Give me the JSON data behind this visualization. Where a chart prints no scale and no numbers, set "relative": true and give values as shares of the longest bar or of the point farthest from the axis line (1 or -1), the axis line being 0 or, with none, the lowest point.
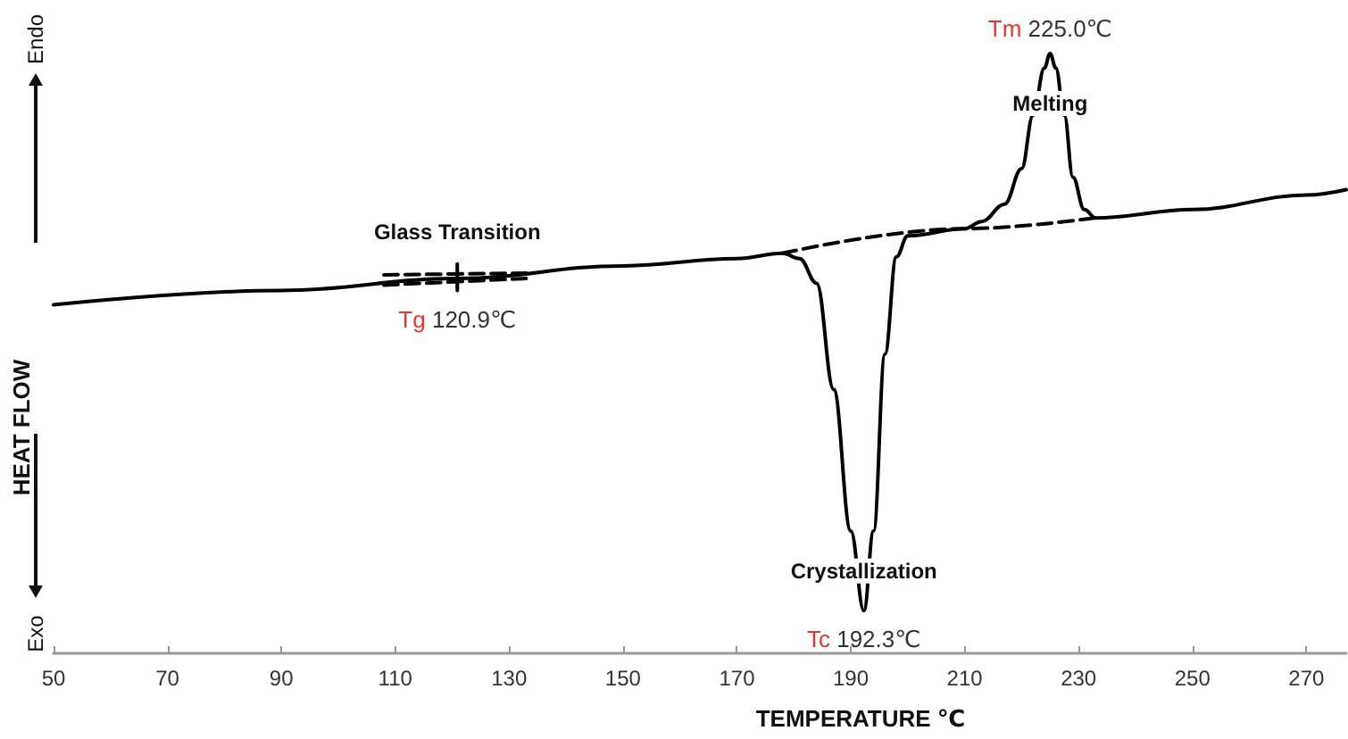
{
  "chart_data": {
    "type": "line",
    "relative": true,
    "xlabel": "TEMPERATURE ℃",
    "ylabel": "HEAT FLOW",
    "marker": "none",
    "grid": false,
    "xlim": [
      50,
      277
    ],
    "xticks": [
      50,
      70,
      90,
      110,
      130,
      150,
      170,
      190,
      210,
      230,
      250,
      270
    ],
    "series": [
      {
        "color": "#000000",
        "line_style": "solid",
        "x": [
          50,
          90,
          120.9,
          150,
          170,
          178,
          181,
          184,
          187,
          190,
          192.3,
          194,
          196,
          198,
          200,
          210,
          213,
          217,
          220,
          222,
          224,
          225,
          226,
          227.5,
          229,
          231,
          233,
          250,
          270,
          277
        ],
        "values": [
          0.581,
          0.605,
          0.625,
          0.646,
          0.658,
          0.667,
          0.658,
          0.617,
          0.44,
          0.204,
          0.071,
          0.204,
          0.499,
          0.661,
          0.696,
          0.708,
          0.72,
          0.749,
          0.808,
          0.897,
          0.976,
          1,
          0.976,
          0.897,
          0.794,
          0.74,
          0.726,
          0.74,
          0.764,
          0.773
        ]
      },
      {
        "color": "#000000",
        "line_style": "dashed",
        "x": [
          178,
          210,
          233
        ],
        "values": [
          0.667,
          0.708,
          0.726
        ]
      },
      {
        "color": "#000000",
        "line_style": "dashed",
        "x": [
          108,
          133
        ],
        "values": [
          0.631,
          0.634
        ]
      },
      {
        "color": "#000000",
        "line_style": "dashed",
        "x": [
          108,
          133
        ],
        "values": [
          0.614,
          0.625
        ]
      },
      {
        "color": "#000000",
        "line_style": "solid",
        "x": [
          120.9,
          120.9
        ],
        "values": [
          0.605,
          0.649
        ]
      }
    ],
    "annotations": [
      {
        "text": "Glass Transition",
        "x": 120.9,
        "y": 0.625
      },
      {
        "text": "Tg 120.9℃",
        "x": 120.9,
        "y": 0.625
      },
      {
        "text": "Crystallization",
        "x": 192.3,
        "y": 0.071
      },
      {
        "text": "Tc 192.3℃",
        "x": 192.3,
        "y": 0.071
      },
      {
        "text": "Melting",
        "x": 225,
        "y": 1
      },
      {
        "text": "Tm 225.0℃",
        "x": 225,
        "y": 1
      },
      "Endo",
      "Exo"
    ]
  }
}
